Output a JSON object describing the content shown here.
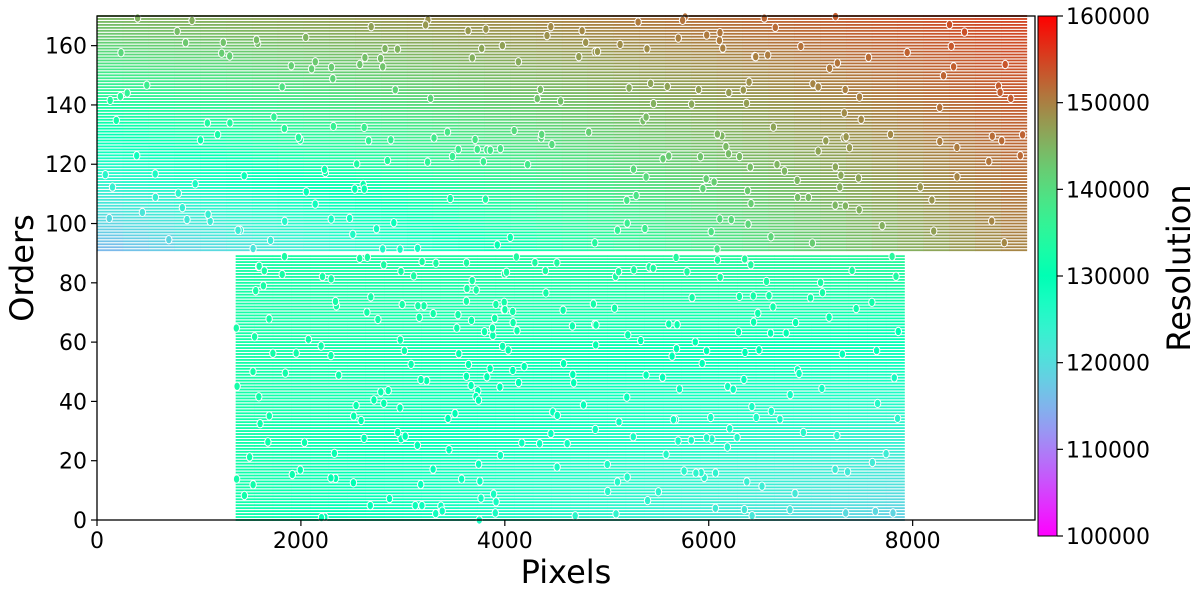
{
  "chart_data": {
    "type": "scatter",
    "xlabel": "Pixels",
    "ylabel": "Orders",
    "colorbar_label": "Resolution",
    "xlim": [
      0,
      9200
    ],
    "ylim": [
      0,
      170
    ],
    "x_ticks": [
      0,
      2000,
      4000,
      6000,
      8000
    ],
    "x_tick_labels": [
      "0",
      "2000",
      "4000",
      "6000",
      "8000"
    ],
    "y_ticks": [
      0,
      20,
      40,
      60,
      80,
      100,
      120,
      140,
      160
    ],
    "y_tick_labels": [
      "0",
      "20",
      "40",
      "60",
      "80",
      "100",
      "120",
      "140",
      "160"
    ],
    "colorbar_range": [
      100000,
      160000
    ],
    "colorbar_ticks": [
      100000,
      110000,
      120000,
      130000,
      140000,
      150000,
      160000
    ],
    "colorbar_tick_labels": [
      "100000",
      "110000",
      "120000",
      "130000",
      "140000",
      "150000",
      "160000"
    ],
    "colormap": "rainbow",
    "grid": false,
    "legend": "none",
    "regions": [
      {
        "x_range": [
          0,
          9120
        ],
        "order_range": [
          91,
          170
        ],
        "resolution_corners": {
          "x0_order91": 115000,
          "x0_order170": 145000,
          "xmax_order91": 150000,
          "xmax_order170": 155000
        }
      },
      {
        "x_range": [
          1360,
          7920
        ],
        "order_range": [
          0,
          89
        ],
        "resolution_corners": {
          "x0_order0": 132000,
          "x0_order89": 133000,
          "xmax_order0": 118000,
          "xmax_order89": 135000
        }
      }
    ]
  }
}
